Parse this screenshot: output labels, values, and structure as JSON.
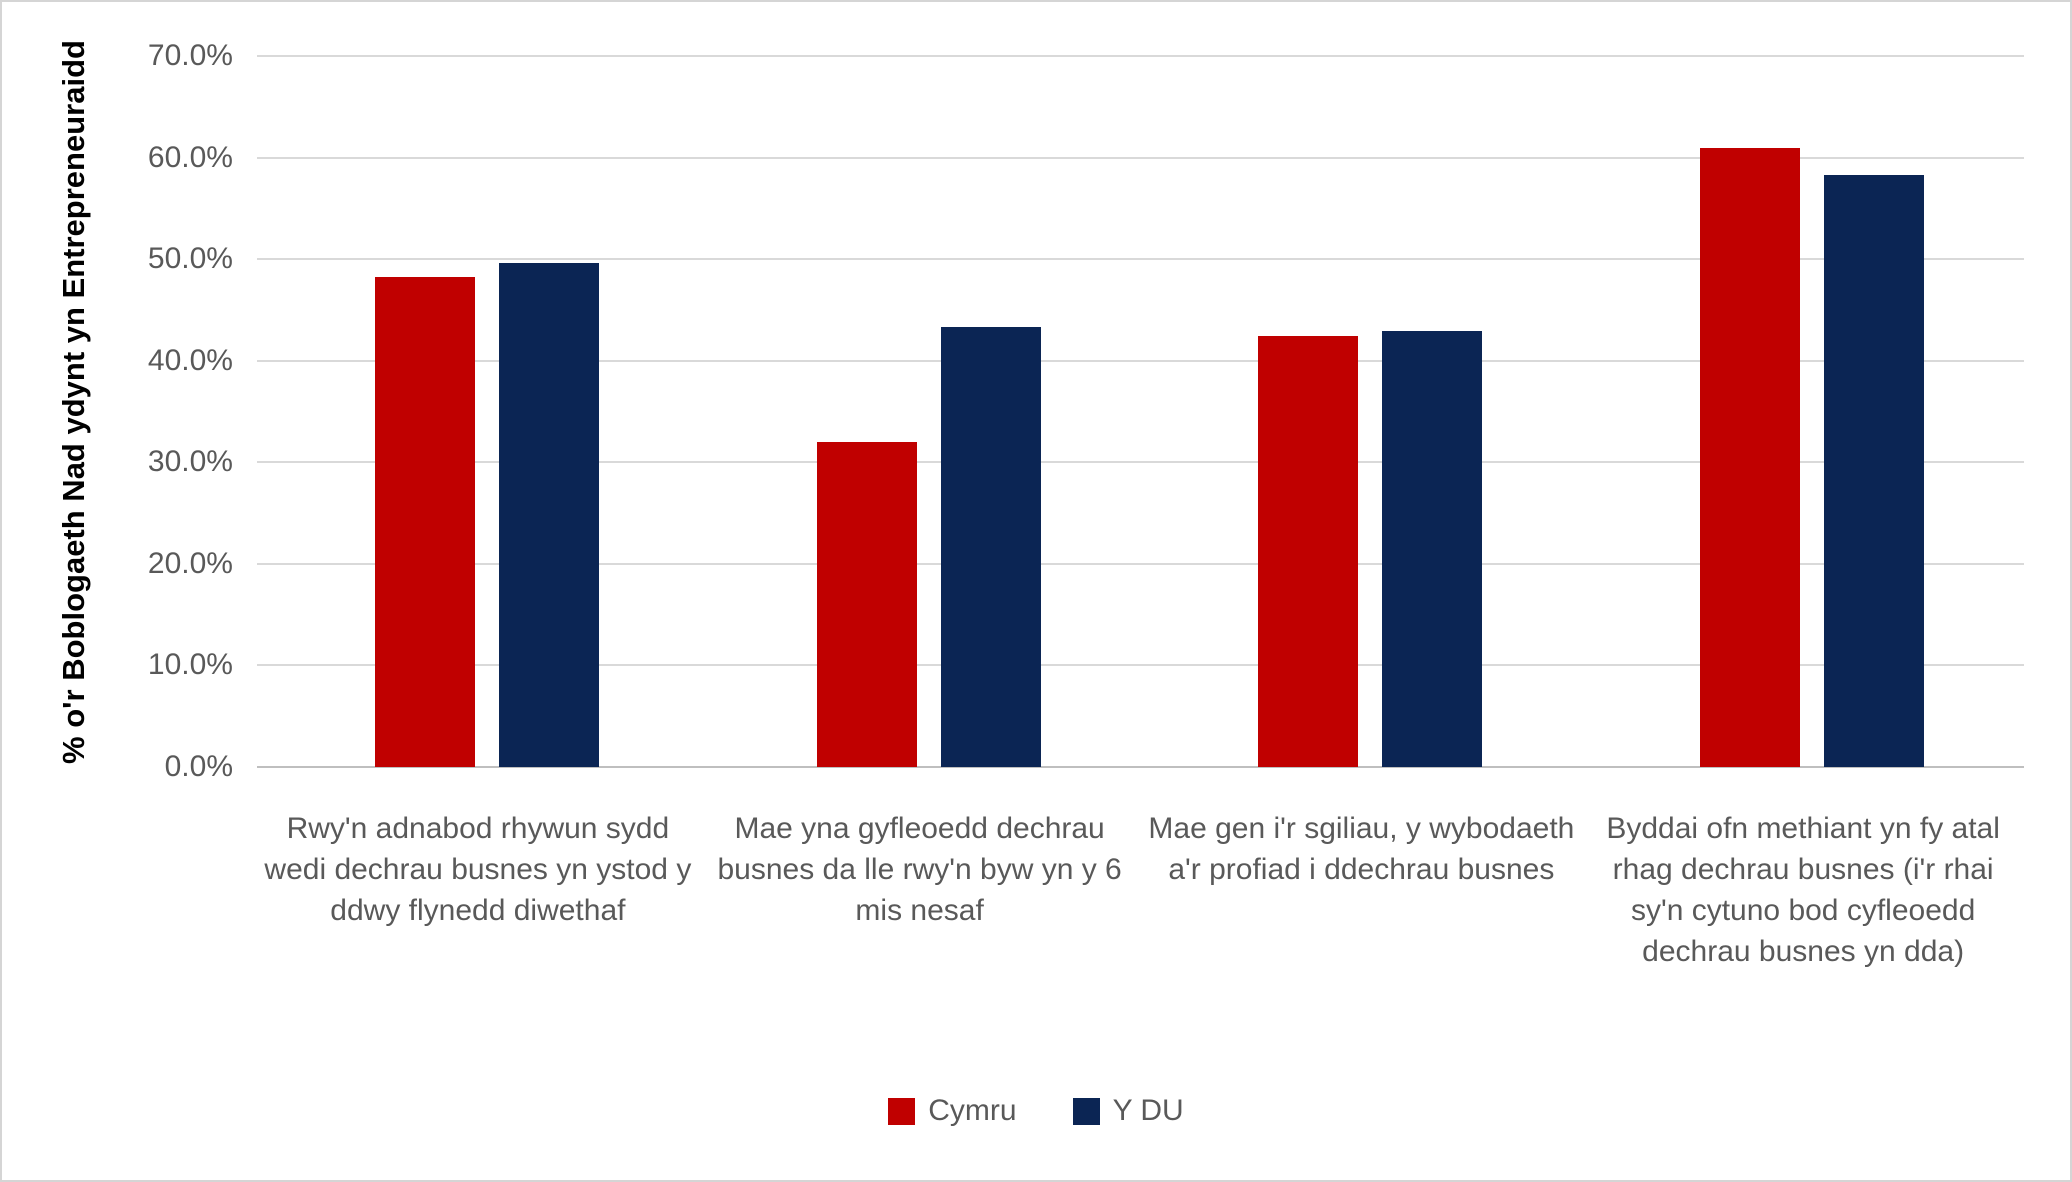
{
  "chart_data": {
    "type": "bar",
    "title": "",
    "ylabel": "% o'r Boblogaeth Nad ydynt yn Entrepreneuraidd",
    "xlabel": "",
    "ylim": [
      0,
      70
    ],
    "grid": "horizontal",
    "legend_position": "bottom",
    "yticks": [
      {
        "value": 0,
        "label": "0.0%"
      },
      {
        "value": 10,
        "label": "10.0%"
      },
      {
        "value": 20,
        "label": "20.0%"
      },
      {
        "value": 30,
        "label": "30.0%"
      },
      {
        "value": 40,
        "label": "40.0%"
      },
      {
        "value": 50,
        "label": "50.0%"
      },
      {
        "value": 60,
        "label": "60.0%"
      },
      {
        "value": 70,
        "label": "70.0%"
      }
    ],
    "categories": [
      "Rwy'n adnabod rhywun sydd wedi dechrau busnes yn ystod y ddwy flynedd diwethaf",
      "Mae yna gyfleoedd dechrau busnes da lle rwy'n byw yn y 6 mis nesaf",
      "Mae gen i'r sgiliau, y wybodaeth a'r profiad i ddechrau busnes",
      "Byddai ofn methiant yn fy atal rhag dechrau busnes (i'r rhai sy'n cytuno bod cyfleoedd dechrau busnes yn dda)"
    ],
    "series": [
      {
        "name": "Cymru",
        "color": "#c00000",
        "values": [
          48.2,
          32.0,
          42.4,
          60.9
        ]
      },
      {
        "name": "Y DU",
        "color": "#0b2554",
        "values": [
          49.6,
          43.3,
          42.9,
          58.3
        ]
      }
    ],
    "colors": {
      "gridline": "#d9d9d9",
      "axis_line": "#bfbfbf",
      "tick_text": "#595959",
      "category_text": "#595959",
      "axis_title_text": "#000000",
      "background": "#ffffff",
      "border": "#d5d5d5"
    }
  }
}
